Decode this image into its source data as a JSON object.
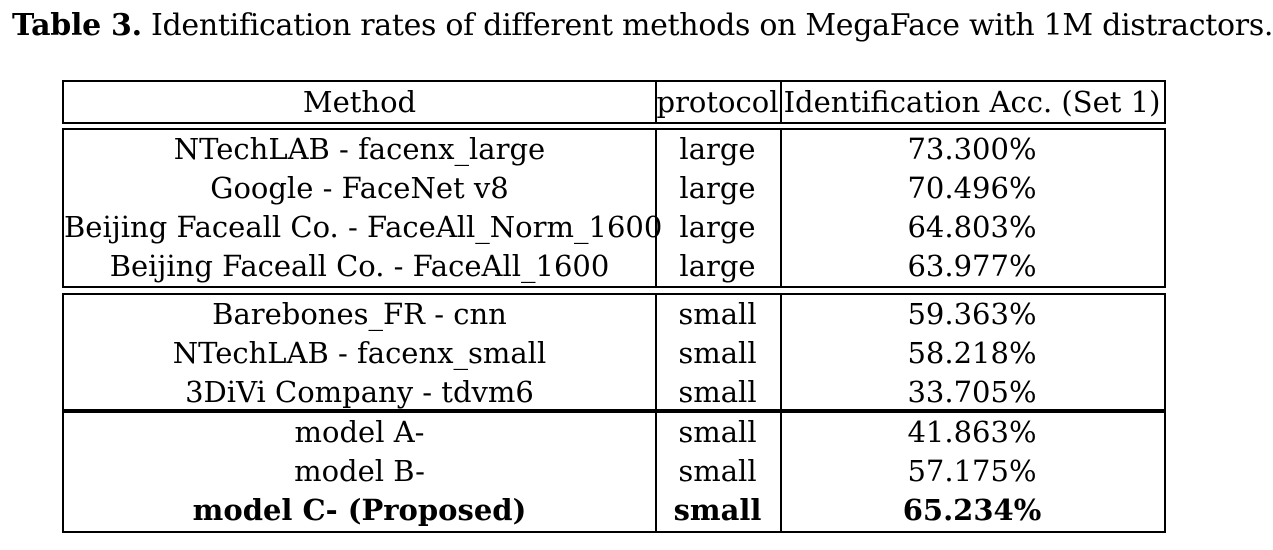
{
  "caption": {
    "label": "Table 3.",
    "text": "Identification rates of different methods on MegaFace with 1M distractors."
  },
  "header": {
    "method": "Method",
    "protocol": "protocol",
    "accuracy": "Identification Acc. (Set 1)"
  },
  "groups": [
    {
      "rows": [
        {
          "method": "NTechLAB - facenx_large",
          "protocol": "large",
          "accuracy": "73.300%"
        },
        {
          "method": "Google - FaceNet v8",
          "protocol": "large",
          "accuracy": "70.496%"
        },
        {
          "method": "Beijing Faceall Co. - FaceAll_Norm_1600",
          "protocol": "large",
          "accuracy": "64.803%"
        },
        {
          "method": "Beijing Faceall Co. - FaceAll_1600",
          "protocol": "large",
          "accuracy": "63.977%"
        }
      ]
    },
    {
      "rows": [
        {
          "method": "Barebones_FR - cnn",
          "protocol": "small",
          "accuracy": "59.363%"
        },
        {
          "method": "NTechLAB - facenx_small",
          "protocol": "small",
          "accuracy": "58.218%"
        },
        {
          "method": "3DiVi Company - tdvm6",
          "protocol": "small",
          "accuracy": "33.705%"
        }
      ]
    },
    {
      "rows": [
        {
          "method": "model A-",
          "protocol": "small",
          "accuracy": "41.863%"
        },
        {
          "method": "model B-",
          "protocol": "small",
          "accuracy": "57.175%"
        },
        {
          "method": "model C- (Proposed)",
          "protocol": "small",
          "accuracy": "65.234%",
          "bold": true
        }
      ]
    }
  ]
}
